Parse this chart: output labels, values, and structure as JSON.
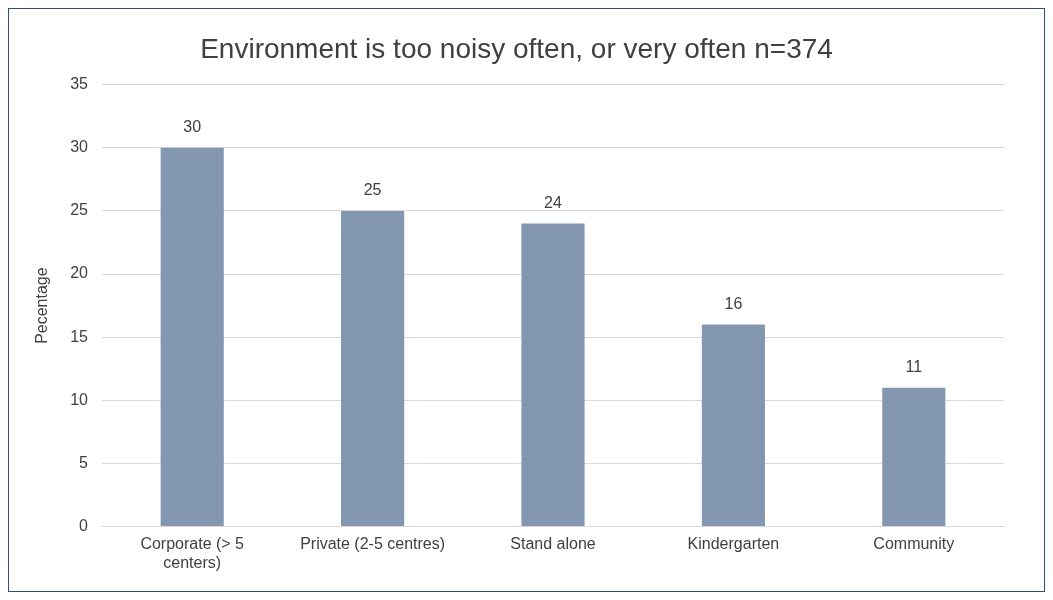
{
  "chart_data": {
    "type": "bar",
    "title": "Environment is too noisy often, or very often n=374",
    "ylabel": "Pecentage",
    "categories": [
      "Corporate (> 5 centers)",
      "Private (2-5 centres)",
      "Stand alone",
      "Kindergarten",
      "Community"
    ],
    "values": [
      30,
      25,
      24,
      16,
      11
    ],
    "color": "#8497b0",
    "ylim": [
      0,
      35
    ],
    "yticks": [
      0,
      5,
      10,
      15,
      20,
      25,
      30,
      35
    ],
    "grid": "y",
    "data_labels": true,
    "legend": false
  }
}
